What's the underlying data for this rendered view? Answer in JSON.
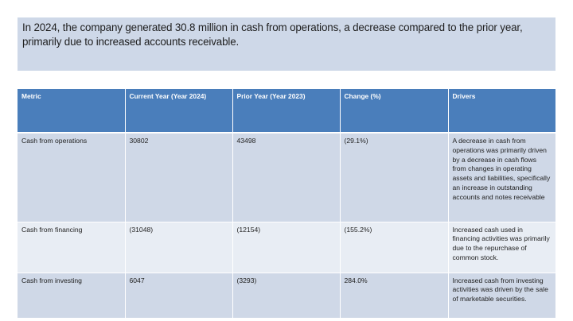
{
  "summary": {
    "text": "In 2024, the company generated 30.8 million in cash from operations, a decrease compared to the prior year, primarily due to increased accounts receivable."
  },
  "colors": {
    "summary_bg": "#ced8e8",
    "header_bg": "#4a7ebb",
    "row_odd_bg": "#cfd8e7",
    "row_even_bg": "#e8edf4",
    "header_text": "#ffffff"
  },
  "table": {
    "columns": [
      "Metric",
      "Current Year (Year 2024)",
      "Prior Year (Year 2023)",
      "Change (%)",
      "Drivers"
    ],
    "rows": [
      {
        "metric": "Cash from operations",
        "current": "30802",
        "prior": "43498",
        "change": "(29.1%)",
        "drivers": "A decrease in cash from operations was primarily driven by a decrease in cash flows from changes in operating assets and liabilities, specifically an increase in outstanding accounts and notes receivable"
      },
      {
        "metric": "Cash from financing",
        "current": "(31048)",
        "prior": "(12154)",
        "change": "(155.2%)",
        "drivers": "Increased cash used in financing activities was primarily due to the repurchase of common stock."
      },
      {
        "metric": "Cash from investing",
        "current": "6047",
        "prior": "(3293)",
        "change": "284.0%",
        "drivers": "Increased cash from investing activities was driven by the sale of marketable securities."
      }
    ]
  }
}
